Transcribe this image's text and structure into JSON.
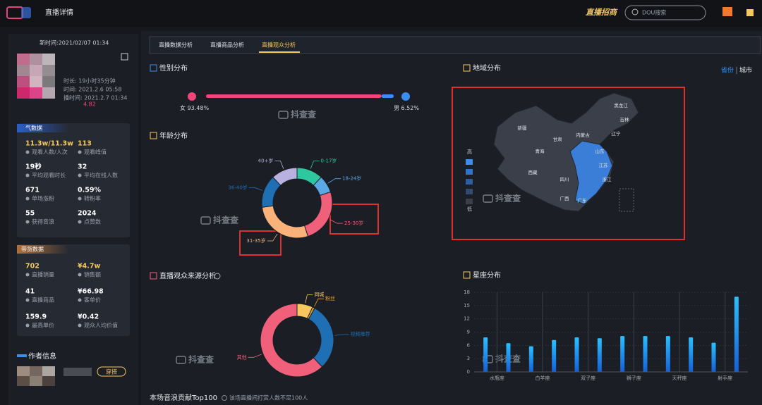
{
  "header": {
    "title": "直播详情",
    "brand": "直播招商",
    "search_placeholder": "DOU搜索"
  },
  "sidebar": {
    "update_time": "新时间:2021/02/07 01:34",
    "profile_lines": [
      "时长: 19小时35分钟",
      "时间: 2021.2.6 05:58",
      "播时间: 2021.2.7 01:34"
    ],
    "profile_score": "4.82",
    "popularity": {
      "title": "气数据",
      "items": [
        {
          "value": "11.3w/11.3w",
          "label": "观看人数/人次"
        },
        {
          "value": "113",
          "label": "观看峰值"
        },
        {
          "value": "19秒",
          "label": "平均观看时长"
        },
        {
          "value": "32",
          "label": "平均在线人数"
        },
        {
          "value": "671",
          "label": "单场涨粉"
        },
        {
          "value": "0.59%",
          "label": "转粉率"
        },
        {
          "value": "55",
          "label": "获得音浪"
        },
        {
          "value": "2024",
          "label": "点赞数"
        }
      ]
    },
    "sales": {
      "title": "带货数据",
      "items": [
        {
          "value": "702",
          "label": "直播销量"
        },
        {
          "value": "¥4.7w",
          "label": "销售额"
        },
        {
          "value": "41",
          "label": "直播商品"
        },
        {
          "value": "¥66.98",
          "label": "客单价"
        },
        {
          "value": "159.9",
          "label": "最高单价"
        },
        {
          "value": "¥0.42",
          "label": "观众人均价值"
        }
      ]
    },
    "author": {
      "title": "作者信息",
      "tag": "穿搭"
    }
  },
  "tabs": [
    "直播数据分析",
    "直播商品分析",
    "直播观众分析"
  ],
  "active_tab": 2,
  "watermark": "抖查查",
  "map": {
    "title": "地域分布",
    "toggle": [
      "省份",
      "城市"
    ],
    "legend": [
      "高",
      "低"
    ],
    "regions": [
      "新疆",
      "西藏",
      "青海",
      "甘肃",
      "内蒙古",
      "黑龙江",
      "吉林",
      "辽宁",
      "四川",
      "山东",
      "江苏",
      "浙江",
      "广东",
      "广西"
    ]
  },
  "footer": {
    "title": "本场音浪贡献Top100",
    "note": "该场直播间打赏人数不足100人"
  },
  "chart_data": [
    {
      "type": "gender-bar",
      "title": "性别分布",
      "categories": [
        "女",
        "男"
      ],
      "values": [
        93.48,
        6.52
      ],
      "value_labels": [
        "93.48%",
        "6.52%"
      ],
      "colors": [
        "#f0457a",
        "#3a8ef0"
      ]
    },
    {
      "type": "donut",
      "title": "年龄分布",
      "categories": [
        "0-17岁",
        "18-24岁",
        "25-30岁",
        "31-35岁",
        "36-40岁",
        "40+岁"
      ],
      "values": [
        12,
        8,
        25,
        28,
        15,
        12
      ],
      "colors": [
        "#2ec8a0",
        "#5aa9e6",
        "#f0607a",
        "#f9b27a",
        "#1f6fb5",
        "#b9b1e0"
      ]
    },
    {
      "type": "donut",
      "title": "直播观众来源分析",
      "categories": [
        "同城",
        "粉丝",
        "视频推荐",
        "其他"
      ],
      "values": [
        7,
        1,
        30,
        62
      ],
      "colors": [
        "#f6c85f",
        "#e8a030",
        "#1f6fb5",
        "#f0607a"
      ]
    },
    {
      "type": "bar",
      "title": "星座分布",
      "categories": [
        "水瓶座",
        null,
        "白羊座",
        null,
        "双子座",
        null,
        "狮子座",
        null,
        "天秤座",
        null,
        "射手座",
        null
      ],
      "values": [
        7.8,
        6.5,
        5.8,
        7.2,
        7.8,
        7.6,
        8.1,
        8.1,
        8.1,
        7.8,
        6.6,
        17
      ],
      "color": "#1e9bf0",
      "ylim": [
        0,
        18
      ],
      "yticks": [
        0,
        3,
        6,
        9,
        12,
        15,
        18
      ],
      "grid": true
    }
  ]
}
